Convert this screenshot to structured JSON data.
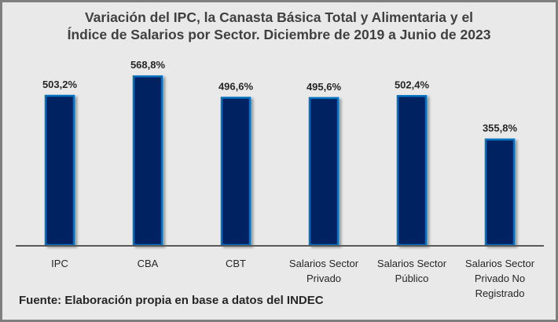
{
  "chart_data": {
    "type": "bar",
    "title": "Variación del IPC, la Canasta Básica Total y Alimentaria y el Índice de Salarios por Sector. Diciembre de 2019 a Junio de 2023",
    "title_lines": [
      "Variación del IPC, la Canasta Básica Total y Alimentaria y el",
      "Índice de Salarios por Sector. Diciembre de 2019 a Junio de 2023"
    ],
    "categories": [
      [
        "IPC"
      ],
      [
        "CBA"
      ],
      [
        "CBT"
      ],
      [
        "Salarios Sector",
        "Privado"
      ],
      [
        "Salarios Sector",
        "Público"
      ],
      [
        "Salarios Sector",
        "Privado No",
        "Registrado"
      ]
    ],
    "values": [
      503.2,
      568.8,
      496.6,
      495.6,
      502.4,
      355.8
    ],
    "labels": [
      "503,2%",
      "568,8%",
      "496,6%",
      "495,6%",
      "502,4%",
      "355,8%"
    ],
    "xlabel": "",
    "ylabel": "",
    "ylim": [
      0,
      600
    ],
    "grid": false,
    "bar_color": "#002060",
    "bar_edge": "#0070c0"
  },
  "source": "Fuente: Elaboración propia en base a datos del INDEC"
}
